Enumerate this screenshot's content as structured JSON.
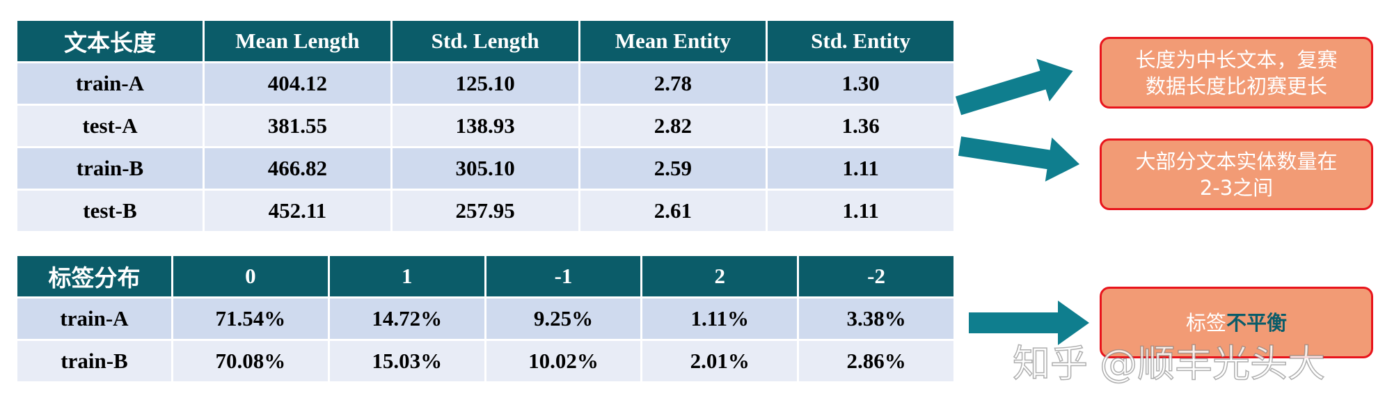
{
  "table1": {
    "header": [
      "文本长度",
      "Mean Length",
      "Std. Length",
      "Mean Entity",
      "Std. Entity"
    ],
    "rows": [
      [
        "train-A",
        "404.12",
        "125.10",
        "2.78",
        "1.30"
      ],
      [
        "test-A",
        "381.55",
        "138.93",
        "2.82",
        "1.36"
      ],
      [
        "train-B",
        "466.82",
        "305.10",
        "2.59",
        "1.11"
      ],
      [
        "test-B",
        "452.11",
        "257.95",
        "2.61",
        "1.11"
      ]
    ]
  },
  "table2": {
    "header": [
      "标签分布",
      "0",
      "1",
      "-1",
      "2",
      "-2"
    ],
    "rows": [
      [
        "train-A",
        "71.54%",
        "14.72%",
        "9.25%",
        "1.11%",
        "3.38%"
      ],
      [
        "train-B",
        "70.08%",
        "15.03%",
        "10.02%",
        "2.01%",
        "2.86%"
      ]
    ]
  },
  "callouts": [
    {
      "lines": [
        "长度为中长文本，复赛",
        "数据长度比初赛更长"
      ]
    },
    {
      "lines": [
        "大部分文本实体数量在",
        "2-3之间"
      ]
    },
    {
      "parts": [
        "标签",
        "不平衡"
      ]
    }
  ],
  "watermark": "知乎 @顺丰光头大"
}
